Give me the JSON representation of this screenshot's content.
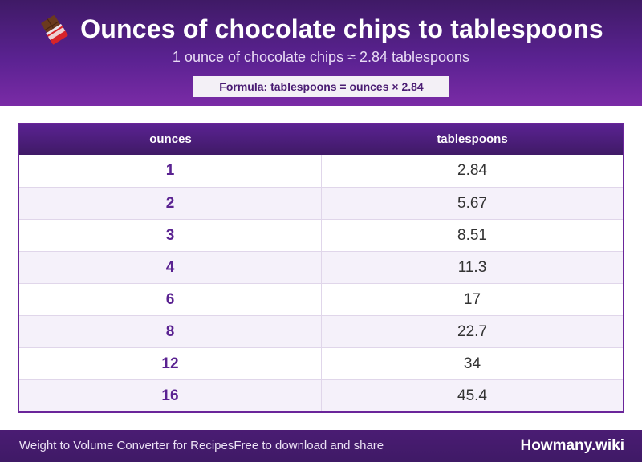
{
  "header": {
    "icon": "chocolate-bar-icon",
    "title": "Ounces of chocolate chips to tablespoons",
    "subtitle": "1 ounce of chocolate chips ≈ 2.84 tablespoons",
    "formula": "Formula: tablespoons = ounces × 2.84"
  },
  "table": {
    "columns": [
      "ounces",
      "tablespoons"
    ],
    "rows": [
      {
        "ounces": "1",
        "tablespoons": "2.84"
      },
      {
        "ounces": "2",
        "tablespoons": "5.67"
      },
      {
        "ounces": "3",
        "tablespoons": "8.51"
      },
      {
        "ounces": "4",
        "tablespoons": "11.3"
      },
      {
        "ounces": "6",
        "tablespoons": "17"
      },
      {
        "ounces": "8",
        "tablespoons": "22.7"
      },
      {
        "ounces": "12",
        "tablespoons": "34"
      },
      {
        "ounces": "16",
        "tablespoons": "45.4"
      }
    ]
  },
  "footer": {
    "left_text_1": "Weight to Volume Converter for Recipes",
    "left_text_2": "Free to download and share",
    "brand": "Howmany.wiki"
  },
  "colors": {
    "brand_purple": "#5a2291",
    "dark_purple": "#3f1a66",
    "row_alt": "#f5f1fa"
  }
}
